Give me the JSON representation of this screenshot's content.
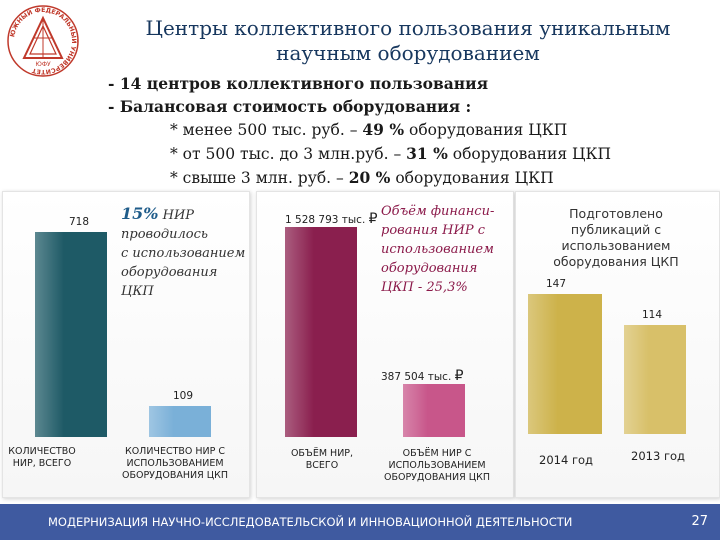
{
  "header": {
    "title_line1": "Центры коллективного пользования уникальным",
    "title_line2": "научным  оборудованием",
    "logo_text": "ЮЖНЫЙ ФЕДЕРАЛЬНЫЙ УНИВЕРСИТЕТ",
    "logo_emblem": "ЮФУ"
  },
  "bullets": [
    "- 14 центров коллективного пользования",
    "- Балансовая стоимость оборудования :"
  ],
  "sub_bullets": [
    {
      "prefix": "* менее 500 тыс. руб. – ",
      "value": "49 %",
      "suffix": " оборудования ЦКП"
    },
    {
      "prefix": "* от 500 тыс. до 3 млн.руб. – ",
      "value": "31 %",
      "suffix": " оборудования ЦКП"
    },
    {
      "prefix": "* свыше 3 млн. руб. – ",
      "value": "20 %",
      "suffix": " оборудования ЦКП"
    }
  ],
  "chart_data": [
    {
      "type": "bar",
      "categories": [
        "КОЛИЧЕСТВО НИР, ВСЕГО",
        "КОЛИЧЕСТВО НИР С ИСПОЛЬЗОВАНИЕМ ОБОРУДОВАНИЯ ЦКП"
      ],
      "values": [
        718,
        109
      ],
      "data_labels": [
        "718",
        "109"
      ],
      "annotation": {
        "highlight": "15%",
        "rest": " НИР",
        "lines": [
          "проводилось",
          "с использованием",
          "оборудования",
          "ЦКП"
        ]
      },
      "colors": [
        "#1e5a66",
        "#7ab0d8"
      ],
      "ylim": [
        0,
        718
      ]
    },
    {
      "type": "bar",
      "categories": [
        "ОБЪЁМ НИР, ВСЕГО",
        "ОБЪЁМ НИР С ИСПОЛЬЗОВАНИЕМ ОБОРУДОВАНИЯ ЦКП"
      ],
      "values": [
        1528793,
        387504
      ],
      "data_labels": [
        "1 528 793 тыс.",
        "387 504 тыс."
      ],
      "currency": "₽",
      "annotation": {
        "lines": [
          "Объём финанси-",
          "рования НИР с",
          "использованием",
          "оборудования",
          "ЦКП - 25,3%"
        ]
      },
      "colors": [
        "#8a1f4e",
        "#c8568a"
      ],
      "ylim": [
        0,
        1528793
      ]
    },
    {
      "type": "bar",
      "categories": [
        "2014 год",
        "2013 год"
      ],
      "values": [
        147,
        114
      ],
      "data_labels": [
        "147",
        "114"
      ],
      "annotation": {
        "lines": [
          "Подготовлено",
          "публикаций с",
          "использованием",
          "оборудования ЦКП"
        ]
      },
      "colors": [
        "#cdb24a",
        "#d8c069"
      ],
      "ylim": [
        0,
        147
      ]
    }
  ],
  "footer": {
    "text": "МОДЕРНИЗАЦИЯ НАУЧНО-ИССЛЕДОВАТЕЛЬСКОЙ И ИННОВАЦИОННОЙ ДЕЯТЕЛЬНОСТИ",
    "page": "27"
  }
}
